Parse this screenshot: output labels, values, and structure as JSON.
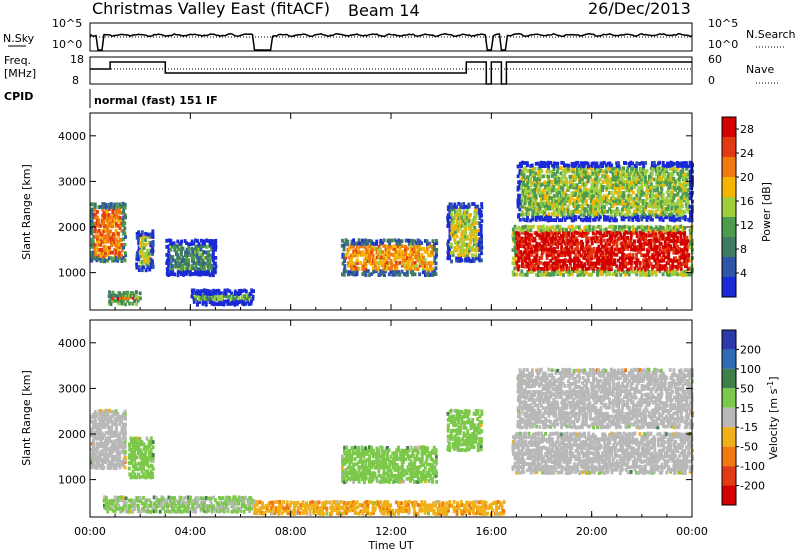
{
  "header": {
    "radar": "Christmas Valley East (fitACF)",
    "beam": "Beam 14",
    "date": "26/Dec/2013"
  },
  "top_strip": {
    "left_label": "N.Sky",
    "right_label": "N.Search",
    "left_ticks": [
      "10^5",
      "10^0"
    ],
    "right_ticks": [
      "10^5",
      "10^0"
    ]
  },
  "freq_strip": {
    "left_label_1": "Freq.",
    "left_label_2": "[MHz]",
    "right_label": "Nave",
    "left_ticks": [
      "18",
      "8"
    ],
    "right_ticks": [
      "60",
      "0"
    ]
  },
  "cpid": {
    "label": "CPID",
    "text": "normal (fast) 151 IF"
  },
  "colors": {
    "power_scale": [
      "#1a2bd6",
      "#2f54a8",
      "#3f7a62",
      "#4e9a4e",
      "#9fcf3d",
      "#f4b400",
      "#f07a10",
      "#e23a12",
      "#d40000"
    ],
    "velocity_scale": [
      "#2b3aa8",
      "#2f6bb5",
      "#3f7f4a",
      "#7cc84b",
      "#b8b8b8",
      "#f0b018",
      "#f07a10",
      "#e23a12",
      "#d40000"
    ]
  },
  "chart_data": [
    {
      "type": "heatmap",
      "title": "",
      "xlabel": "Time UT",
      "ylabel": "Slant Range [km]",
      "x_ticks": [
        "00:00",
        "04:00",
        "08:00",
        "12:00",
        "16:00",
        "20:00",
        "00:00"
      ],
      "y_ticks": [
        "1000",
        "2000",
        "3000",
        "4000"
      ],
      "ylim": [
        180,
        4500
      ],
      "colorbar": {
        "label": "Power [dB]",
        "ticks": [
          "4",
          "8",
          "12",
          "16",
          "20",
          "24",
          "28"
        ],
        "range": [
          0,
          30
        ]
      },
      "echo_regions": [
        {
          "t_start": 0.0,
          "t_end": 1.4,
          "r_min": 1200,
          "r_max": 2500,
          "level": 22
        },
        {
          "t_start": 0.7,
          "t_end": 2.0,
          "r_min": 260,
          "r_max": 560,
          "level": 25
        },
        {
          "t_start": 1.8,
          "t_end": 2.5,
          "r_min": 1000,
          "r_max": 1900,
          "level": 16
        },
        {
          "t_start": 3.0,
          "t_end": 5.0,
          "r_min": 900,
          "r_max": 1700,
          "level": 10
        },
        {
          "t_start": 4.0,
          "t_end": 6.5,
          "r_min": 250,
          "r_max": 600,
          "level": 12
        },
        {
          "t_start": 10.0,
          "t_end": 13.8,
          "r_min": 900,
          "r_max": 1700,
          "level": 20
        },
        {
          "t_start": 14.2,
          "t_end": 15.6,
          "r_min": 1200,
          "r_max": 2500,
          "level": 16
        },
        {
          "t_start": 16.8,
          "t_end": 24.0,
          "r_min": 900,
          "r_max": 2000,
          "level": 28
        },
        {
          "t_start": 17.0,
          "t_end": 24.0,
          "r_min": 2100,
          "r_max": 3400,
          "level": 14
        }
      ]
    },
    {
      "type": "heatmap",
      "title": "",
      "xlabel": "Time UT",
      "ylabel": "Slant Range [km]",
      "x_ticks": [
        "00:00",
        "04:00",
        "08:00",
        "12:00",
        "16:00",
        "20:00",
        "00:00"
      ],
      "y_ticks": [
        "1000",
        "2000",
        "3000",
        "4000"
      ],
      "ylim": [
        180,
        4500
      ],
      "colorbar": {
        "label": "Velocity [m s-1]",
        "label_parts": [
          "Velocity [m s",
          "-1",
          "]"
        ],
        "ticks": [
          "200",
          "100",
          "50",
          "15",
          "-15",
          "-50",
          "-100",
          "-200"
        ],
        "range": [
          -250,
          250
        ]
      },
      "echo_regions": [
        {
          "t_start": 0.0,
          "t_end": 1.4,
          "r_min": 1200,
          "r_max": 2500,
          "level": 0
        },
        {
          "t_start": 1.5,
          "t_end": 2.5,
          "r_min": 1000,
          "r_max": 1900,
          "level": 30
        },
        {
          "t_start": 0.5,
          "t_end": 6.5,
          "r_min": 250,
          "r_max": 600,
          "level": 20
        },
        {
          "t_start": 6.5,
          "t_end": 16.5,
          "r_min": 200,
          "r_max": 500,
          "level": -40
        },
        {
          "t_start": 10.0,
          "t_end": 13.8,
          "r_min": 900,
          "r_max": 1700,
          "level": 30
        },
        {
          "t_start": 14.2,
          "t_end": 15.6,
          "r_min": 1600,
          "r_max": 2500,
          "level": 30
        },
        {
          "t_start": 16.8,
          "t_end": 24.0,
          "r_min": 1100,
          "r_max": 2000,
          "level": 0
        },
        {
          "t_start": 17.0,
          "t_end": 24.0,
          "r_min": 2100,
          "r_max": 3400,
          "level": 0
        }
      ]
    }
  ]
}
